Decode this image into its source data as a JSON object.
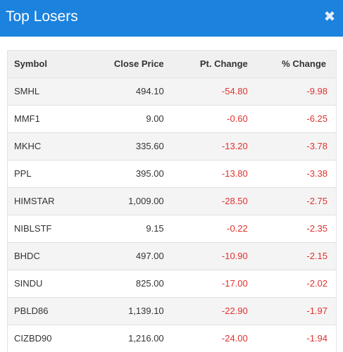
{
  "header": {
    "title": "Top Losers",
    "close_symbol": "✖",
    "background_color": "#1b82dd"
  },
  "table": {
    "columns": [
      "Symbol",
      "Close Price",
      "Pt. Change",
      "% Change"
    ],
    "rows": [
      {
        "symbol": "SMHL",
        "close": "494.10",
        "pt_change": "-54.80",
        "pct_change": "-9.98"
      },
      {
        "symbol": "MMF1",
        "close": "9.00",
        "pt_change": "-0.60",
        "pct_change": "-6.25"
      },
      {
        "symbol": "MKHC",
        "close": "335.60",
        "pt_change": "-13.20",
        "pct_change": "-3.78"
      },
      {
        "symbol": "PPL",
        "close": "395.00",
        "pt_change": "-13.80",
        "pct_change": "-3.38"
      },
      {
        "symbol": "HIMSTAR",
        "close": "1,009.00",
        "pt_change": "-28.50",
        "pct_change": "-2.75"
      },
      {
        "symbol": "NIBLSTF",
        "close": "9.15",
        "pt_change": "-0.22",
        "pct_change": "-2.35"
      },
      {
        "symbol": "BHDC",
        "close": "497.00",
        "pt_change": "-10.90",
        "pct_change": "-2.15"
      },
      {
        "symbol": "SINDU",
        "close": "825.00",
        "pt_change": "-17.00",
        "pct_change": "-2.02"
      },
      {
        "symbol": "PBLD86",
        "close": "1,139.10",
        "pt_change": "-22.90",
        "pct_change": "-1.97"
      },
      {
        "symbol": "CIZBD90",
        "close": "1,216.00",
        "pt_change": "-24.00",
        "pct_change": "-1.94"
      }
    ],
    "negative_color": "#e0312d"
  }
}
